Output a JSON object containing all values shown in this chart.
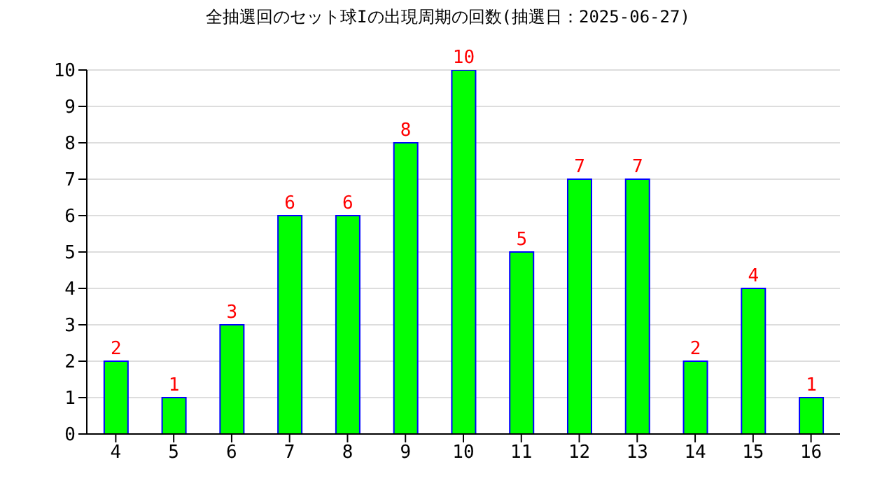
{
  "chart_data": {
    "type": "bar",
    "title": "全抽選回のセット球Iの出現周期の回数(抽選日：2025-06-27)",
    "categories": [
      "4",
      "5",
      "6",
      "7",
      "8",
      "9",
      "10",
      "11",
      "12",
      "13",
      "14",
      "15",
      "16"
    ],
    "values": [
      2,
      1,
      3,
      6,
      6,
      8,
      10,
      5,
      7,
      7,
      2,
      4,
      1
    ],
    "color": "#00ff00",
    "ylim": [
      0,
      10
    ],
    "yticks": [
      0,
      1,
      2,
      3,
      4,
      5,
      6,
      7,
      8,
      9,
      10
    ],
    "grid": "y",
    "data_labels": true
  }
}
